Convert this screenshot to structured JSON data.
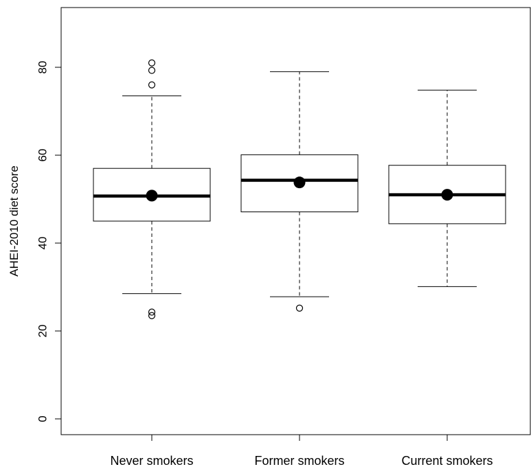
{
  "chart_data": {
    "type": "box",
    "title": "",
    "xlabel": "",
    "ylabel": "AHEI-2010 diet score",
    "ylim": [
      0,
      92
    ],
    "yticks": [
      0,
      20,
      40,
      60,
      80
    ],
    "grid": false,
    "categories": [
      "Never smokers",
      "Former smokers",
      "Current smokers"
    ],
    "boxes": [
      {
        "category": "Never smokers",
        "whisker_low": 28.5,
        "q1": 45.0,
        "median": 50.7,
        "q3": 57.0,
        "whisker_high": 73.5,
        "mean": 50.8,
        "outliers": [
          81.0,
          79.3,
          76.0,
          24.3,
          23.5
        ]
      },
      {
        "category": "Former smokers",
        "whisker_low": 27.8,
        "q1": 47.1,
        "median": 54.3,
        "q3": 60.1,
        "whisker_high": 79.0,
        "mean": 53.8,
        "outliers": [
          25.2
        ]
      },
      {
        "category": "Current smokers",
        "whisker_low": 30.1,
        "q1": 44.4,
        "median": 51.0,
        "q3": 57.7,
        "whisker_high": 74.8,
        "mean": 51.0,
        "outliers": []
      }
    ]
  }
}
